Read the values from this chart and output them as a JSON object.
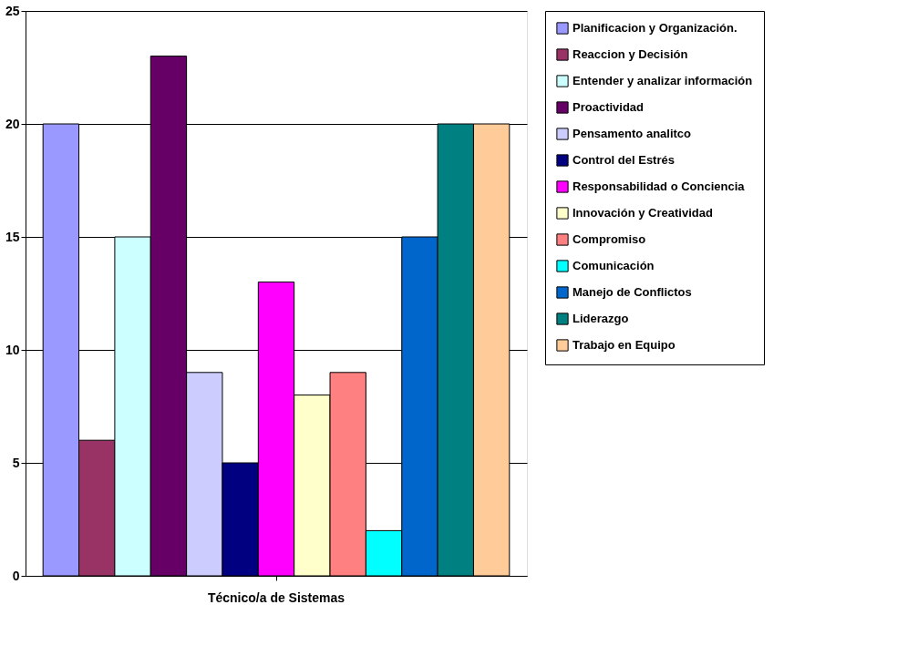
{
  "chart_data": {
    "type": "bar",
    "categories": [
      "Técnico/a de Sistemas"
    ],
    "series": [
      {
        "name": "Planificacion y Organización.",
        "color": "#9999ff",
        "values": [
          20
        ]
      },
      {
        "name": "Reaccion y Decisión",
        "color": "#993366",
        "values": [
          6
        ]
      },
      {
        "name": "Entender y analizar información",
        "color": "#ccffff",
        "values": [
          15
        ]
      },
      {
        "name": "Proactividad",
        "color": "#660066",
        "values": [
          23
        ]
      },
      {
        "name": "Pensamento analitco",
        "color": "#ccccff",
        "values": [
          9
        ]
      },
      {
        "name": "Control del Estrés",
        "color": "#000080",
        "values": [
          5
        ]
      },
      {
        "name": "Responsabilidad o Conciencia",
        "color": "#ff00ff",
        "values": [
          13
        ]
      },
      {
        "name": "Innovación y Creatividad",
        "color": "#ffffcc",
        "values": [
          8
        ]
      },
      {
        "name": "Compromiso",
        "color": "#ff8080",
        "values": [
          9
        ]
      },
      {
        "name": "Comunicación",
        "color": "#00ffff",
        "values": [
          2
        ]
      },
      {
        "name": "Manejo de Conflictos",
        "color": "#0066cc",
        "values": [
          15
        ]
      },
      {
        "name": "Liderazgo",
        "color": "#008080",
        "values": [
          20
        ]
      },
      {
        "name": "Trabajo en Equipo",
        "color": "#ffcc99",
        "values": [
          20
        ]
      }
    ],
    "ylim": [
      0,
      25
    ],
    "yticks": [
      0,
      5,
      10,
      15,
      20,
      25
    ],
    "grid": "y",
    "legend": "right"
  }
}
